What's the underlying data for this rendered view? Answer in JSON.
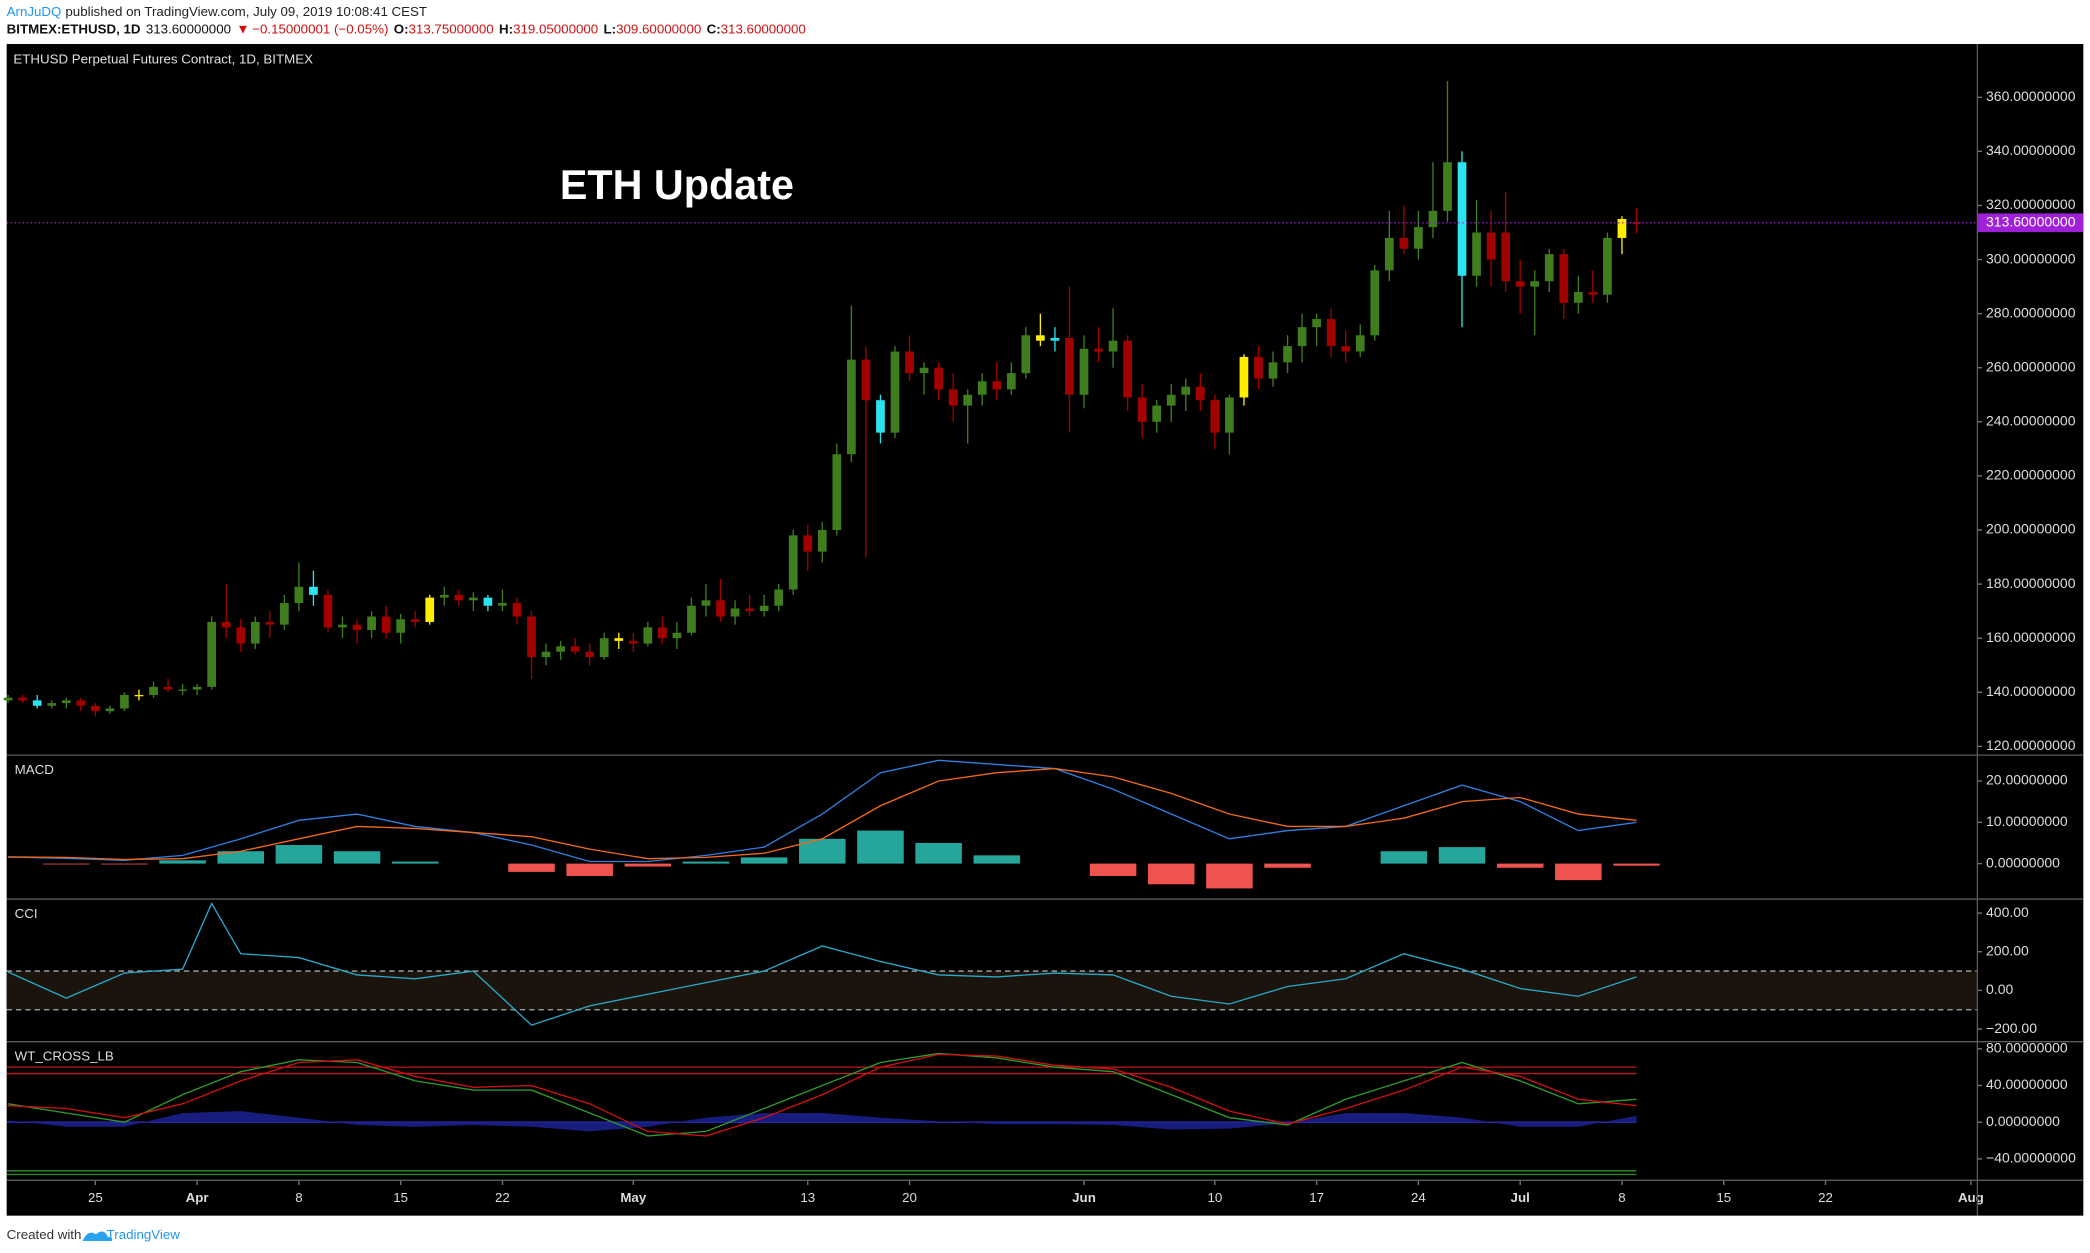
{
  "header": {
    "author": "ArnJuDQ",
    "published": "published on TradingView.com, July 09, 2019 10:08:41 CEST",
    "symbol": "BITMEX:ETHUSD, 1D",
    "last": "313.60000000",
    "arrow": "▼",
    "change": "−0.15000001 (−0.05%)",
    "ohlc": [
      {
        "key": "O:",
        "value": "313.75000000"
      },
      {
        "key": "H:",
        "value": "319.05000000"
      },
      {
        "key": "L:",
        "value": "309.60000000"
      },
      {
        "key": "C:",
        "value": "313.60000000"
      }
    ]
  },
  "footer": {
    "created": "Created with",
    "brand": "TradingView"
  },
  "chart_data": [
    {
      "type": "candlestick",
      "title": "ETHUSD Perpetual Futures Contract, 1D, BITMEX",
      "annotation": "ETH Update",
      "up_color": "#3f7d1f",
      "down_color": "#a30000",
      "highlights": [
        {
          "index": 2,
          "color": "#2de2ef"
        },
        {
          "index": 9,
          "color": "#ffee00"
        },
        {
          "index": 21,
          "color": "#2de2ef"
        },
        {
          "index": 29,
          "color": "#ffee00"
        },
        {
          "index": 33,
          "color": "#2de2ef"
        },
        {
          "index": 42,
          "color": "#ffee00"
        },
        {
          "index": 60,
          "color": "#2de2ef"
        },
        {
          "index": 71,
          "color": "#ffee00"
        },
        {
          "index": 72,
          "color": "#2de2ef"
        },
        {
          "index": 85,
          "color": "#ffee00"
        },
        {
          "index": 100,
          "color": "#2de2ef"
        },
        {
          "index": 111,
          "color": "#ffee00"
        }
      ],
      "x": [
        0,
        1,
        2,
        3,
        4,
        5,
        6,
        7,
        8,
        9,
        10,
        11,
        12,
        13,
        14,
        15,
        16,
        17,
        18,
        19,
        20,
        21,
        22,
        23,
        24,
        25,
        26,
        27,
        28,
        29,
        30,
        31,
        32,
        33,
        34,
        35,
        36,
        37,
        38,
        39,
        40,
        41,
        42,
        43,
        44,
        45,
        46,
        47,
        48,
        49,
        50,
        51,
        52,
        53,
        54,
        55,
        56,
        57,
        58,
        59,
        60,
        61,
        62,
        63,
        64,
        65,
        66,
        67,
        68,
        69,
        70,
        71,
        72,
        73,
        74,
        75,
        76,
        77,
        78,
        79,
        80,
        81,
        82,
        83,
        84,
        85,
        86,
        87,
        88,
        89,
        90,
        91,
        92,
        93,
        94,
        95,
        96,
        97,
        98,
        99,
        100,
        101,
        102,
        103,
        104,
        105,
        106,
        107,
        108,
        109,
        110,
        111,
        112
      ],
      "open": [
        137,
        138,
        137,
        135,
        136,
        137,
        135,
        133,
        134,
        139,
        139,
        142,
        141,
        141,
        142,
        166,
        164,
        158,
        166,
        165,
        173,
        179,
        176,
        164,
        165,
        163,
        168,
        162,
        167,
        166,
        175,
        176,
        174,
        175,
        172,
        173,
        168,
        153,
        155,
        157,
        155,
        153,
        160,
        159,
        158,
        164,
        160,
        162,
        172,
        174,
        168,
        171,
        170,
        172,
        178,
        198,
        192,
        200,
        228,
        263,
        248,
        236,
        266,
        258,
        260,
        252,
        246,
        250,
        255,
        252,
        258,
        272,
        270,
        271,
        250,
        267,
        266,
        270,
        249,
        240,
        246,
        250,
        253,
        248,
        236,
        249,
        264,
        256,
        262,
        268,
        275,
        278,
        268,
        266,
        272,
        296,
        308,
        304,
        312,
        318,
        336,
        294,
        310,
        310,
        292,
        290,
        292,
        302,
        284,
        288,
        287,
        308,
        313.75
      ],
      "high": [
        139,
        139,
        139,
        137,
        138,
        138,
        136,
        135,
        140,
        141,
        144,
        145,
        143,
        143,
        168,
        180,
        167,
        168,
        170,
        176,
        188,
        185,
        178,
        168,
        167,
        170,
        172,
        169,
        170,
        176,
        179,
        178,
        177,
        176,
        178,
        175,
        170,
        158,
        159,
        160,
        158,
        162,
        162,
        162,
        166,
        168,
        166,
        175,
        180,
        182,
        174,
        176,
        176,
        180,
        200,
        202,
        203,
        232,
        283,
        268,
        250,
        268,
        272,
        262,
        262,
        258,
        252,
        258,
        262,
        262,
        275,
        280,
        275,
        290,
        272,
        275,
        282,
        272,
        254,
        248,
        254,
        256,
        258,
        250,
        250,
        265,
        268,
        266,
        272,
        280,
        280,
        282,
        274,
        276,
        298,
        318,
        320,
        318,
        336,
        366,
        340,
        322,
        318,
        325,
        300,
        296,
        304,
        304,
        294,
        296,
        310,
        316,
        319.05
      ],
      "low": [
        136,
        136,
        134,
        134,
        134,
        133,
        131,
        132,
        133,
        137,
        138,
        140,
        139,
        139,
        141,
        160,
        155,
        156,
        160,
        163,
        170,
        172,
        162,
        160,
        158,
        160,
        160,
        158,
        164,
        165,
        172,
        172,
        170,
        170,
        170,
        165,
        145,
        150,
        152,
        154,
        150,
        152,
        156,
        155,
        157,
        158,
        156,
        161,
        168,
        166,
        165,
        168,
        168,
        170,
        176,
        185,
        188,
        198,
        225,
        190,
        232,
        234,
        255,
        250,
        248,
        240,
        232,
        246,
        248,
        250,
        256,
        268,
        266,
        236,
        245,
        262,
        260,
        244,
        234,
        236,
        240,
        244,
        244,
        230,
        228,
        246,
        252,
        253,
        258,
        262,
        268,
        264,
        262,
        264,
        270,
        292,
        302,
        300,
        308,
        314,
        275,
        290,
        290,
        288,
        280,
        272,
        288,
        278,
        280,
        284,
        284,
        302,
        309.6
      ],
      "close": [
        138,
        137,
        135,
        136,
        137,
        135,
        133,
        134,
        139,
        139,
        142,
        141,
        141,
        142,
        166,
        164,
        158,
        166,
        165,
        173,
        179,
        176,
        164,
        165,
        163,
        168,
        162,
        167,
        166,
        175,
        176,
        174,
        175,
        172,
        173,
        168,
        153,
        155,
        157,
        155,
        153,
        160,
        159,
        158,
        164,
        160,
        162,
        172,
        174,
        168,
        171,
        170,
        172,
        178,
        198,
        192,
        200,
        228,
        263,
        248,
        236,
        266,
        258,
        260,
        252,
        246,
        250,
        255,
        252,
        258,
        272,
        270,
        271,
        250,
        267,
        266,
        270,
        249,
        240,
        246,
        250,
        253,
        248,
        236,
        249,
        264,
        256,
        262,
        268,
        275,
        278,
        268,
        266,
        272,
        296,
        308,
        304,
        312,
        318,
        336,
        294,
        310,
        300,
        292,
        290,
        292,
        302,
        284,
        288,
        287,
        308,
        315,
        313.6
      ],
      "ylim": [
        117,
        379.7
      ],
      "yticks": [
        {
          "value": 120,
          "label": "120.00000000"
        },
        {
          "value": 140,
          "label": "140.00000000"
        },
        {
          "value": 160,
          "label": "160.00000000"
        },
        {
          "value": 180,
          "label": "180.00000000"
        },
        {
          "value": 200,
          "label": "200.00000000"
        },
        {
          "value": 220,
          "label": "220.00000000"
        },
        {
          "value": 240,
          "label": "240.00000000"
        },
        {
          "value": 260,
          "label": "260.00000000"
        },
        {
          "value": 280,
          "label": "280.00000000"
        },
        {
          "value": 300,
          "label": "300.00000000"
        },
        {
          "value": 320,
          "label": "320.00000000"
        },
        {
          "value": 340,
          "label": "340.00000000"
        },
        {
          "value": 360,
          "label": "360.00000000"
        }
      ],
      "last_price": {
        "value": 313.6,
        "label": "313.60000000",
        "color": "#a020d8"
      },
      "xlim": [
        -0.1,
        135.4
      ],
      "xticks": [
        {
          "value": 6,
          "label": "25"
        },
        {
          "value": 13,
          "label": "Apr"
        },
        {
          "value": 20,
          "label": "8"
        },
        {
          "value": 27,
          "label": "15"
        },
        {
          "value": 34,
          "label": "22"
        },
        {
          "value": 43,
          "label": "May"
        },
        {
          "value": 55,
          "label": "13"
        },
        {
          "value": 62,
          "label": "20"
        },
        {
          "value": 74,
          "label": "Jun"
        },
        {
          "value": 83,
          "label": "10"
        },
        {
          "value": 90,
          "label": "17"
        },
        {
          "value": 97,
          "label": "24"
        },
        {
          "value": 104,
          "label": "Jul"
        },
        {
          "value": 111,
          "label": "8"
        },
        {
          "value": 118,
          "label": "15"
        },
        {
          "value": 125,
          "label": "22"
        },
        {
          "value": 135,
          "label": "Aug"
        }
      ]
    },
    {
      "type": "line",
      "title": "MACD",
      "ylim": [
        -8.1,
        26.1
      ],
      "yticks": [
        {
          "value": 0,
          "label": "0.00000000"
        },
        {
          "value": 10,
          "label": "10.00000000"
        },
        {
          "value": 20,
          "label": "20.00000000"
        }
      ],
      "x": [
        0,
        4,
        8,
        12,
        16,
        20,
        24,
        28,
        32,
        36,
        40,
        44,
        48,
        52,
        56,
        60,
        64,
        68,
        72,
        76,
        80,
        84,
        88,
        92,
        96,
        100,
        104,
        108,
        112
      ],
      "series": [
        {
          "style": "histogram",
          "color": "#26a69a",
          "down_color": "#ef5350",
          "values": [
            0,
            -0.2,
            -0.2,
            0.8,
            3,
            4.5,
            3,
            0.5,
            0,
            -2,
            -3,
            -0.7,
            0.5,
            1.5,
            6,
            8,
            5,
            2,
            0,
            -3,
            -5,
            -6,
            -1,
            0,
            3,
            4,
            -1,
            -4,
            -0.5
          ]
        },
        {
          "style": "line",
          "color": "#2f7fe0",
          "values": [
            1.6,
            1.3,
            0.8,
            2,
            6,
            10.5,
            12,
            9,
            7.5,
            4.5,
            0.5,
            0.5,
            2,
            4,
            12,
            22,
            25,
            24,
            23,
            18,
            12,
            6,
            8,
            9,
            14,
            19,
            15,
            8,
            10
          ]
        },
        {
          "style": "line",
          "color": "#f06a1a",
          "values": [
            1.6,
            1.5,
            1,
            1.2,
            3,
            6,
            9,
            8.5,
            7.5,
            6.5,
            3.5,
            1.2,
            1.5,
            2.5,
            6,
            14,
            20,
            22,
            23,
            21,
            17,
            12,
            9,
            9,
            11,
            15,
            16,
            12,
            10.5
          ]
        }
      ]
    },
    {
      "type": "line",
      "title": "CCI",
      "ylim": [
        -255,
        469
      ],
      "yticks": [
        {
          "value": 400,
          "label": "400.00"
        },
        {
          "value": 200,
          "label": "200.00"
        },
        {
          "value": 0,
          "label": "0.00"
        },
        {
          "value": -200,
          "label": "−200.00"
        }
      ],
      "bands": [
        100,
        -100
      ],
      "band_color": "#1a140c",
      "x": [
        0,
        4,
        8,
        12,
        14,
        16,
        20,
        24,
        28,
        32,
        36,
        40,
        44,
        48,
        52,
        56,
        60,
        64,
        68,
        72,
        76,
        80,
        84,
        88,
        92,
        96,
        100,
        104,
        108,
        112
      ],
      "series": [
        {
          "style": "line",
          "color": "#2aa7c9",
          "values": [
            95,
            -40,
            90,
            110,
            450,
            190,
            170,
            80,
            60,
            100,
            -180,
            -80,
            -20,
            40,
            100,
            230,
            150,
            80,
            70,
            90,
            80,
            -30,
            -70,
            20,
            60,
            190,
            110,
            10,
            -30,
            70
          ]
        }
      ]
    },
    {
      "type": "line",
      "title": "WT_CROSS_LB",
      "ylim": [
        -62.6,
        87
      ],
      "yticks": [
        {
          "value": 80,
          "label": "80.00000000"
        },
        {
          "value": 40,
          "label": "40.00000000"
        },
        {
          "value": 0,
          "label": "0.00000000"
        },
        {
          "value": -40,
          "label": "−40.00000000"
        }
      ],
      "levels": [
        {
          "value": 60,
          "color": "#c01818"
        },
        {
          "value": 53,
          "color": "#c01818"
        },
        {
          "value": 0,
          "color": "#3030c0"
        },
        {
          "value": -53,
          "color": "#2e8b2e"
        },
        {
          "value": -57,
          "color": "#2e8b2e"
        }
      ],
      "x": [
        0,
        4,
        8,
        12,
        16,
        20,
        24,
        28,
        32,
        36,
        40,
        44,
        48,
        52,
        56,
        60,
        64,
        68,
        72,
        76,
        80,
        84,
        88,
        92,
        96,
        100,
        104,
        108,
        112
      ],
      "series": [
        {
          "style": "area",
          "color": "#1b1f8a",
          "values": [
            2,
            -5,
            -5,
            10,
            12,
            5,
            -3,
            -5,
            -3,
            -5,
            -10,
            -5,
            5,
            10,
            10,
            5,
            1,
            -2,
            -2,
            -3,
            -8,
            -7,
            -1,
            10,
            10,
            5,
            -5,
            -5,
            7
          ]
        },
        {
          "style": "line",
          "color": "#2e9a2e",
          "values": [
            20,
            10,
            0,
            30,
            55,
            68,
            65,
            45,
            35,
            35,
            10,
            -15,
            -10,
            15,
            40,
            65,
            75,
            70,
            60,
            55,
            30,
            5,
            -3,
            25,
            45,
            65,
            45,
            20,
            25
          ]
        },
        {
          "style": "line",
          "color": "#d01010",
          "values": [
            18,
            15,
            5,
            20,
            45,
            65,
            68,
            50,
            38,
            40,
            20,
            -10,
            -15,
            5,
            30,
            60,
            74,
            72,
            62,
            58,
            38,
            12,
            -2,
            15,
            35,
            60,
            50,
            25,
            18
          ]
        }
      ]
    }
  ]
}
